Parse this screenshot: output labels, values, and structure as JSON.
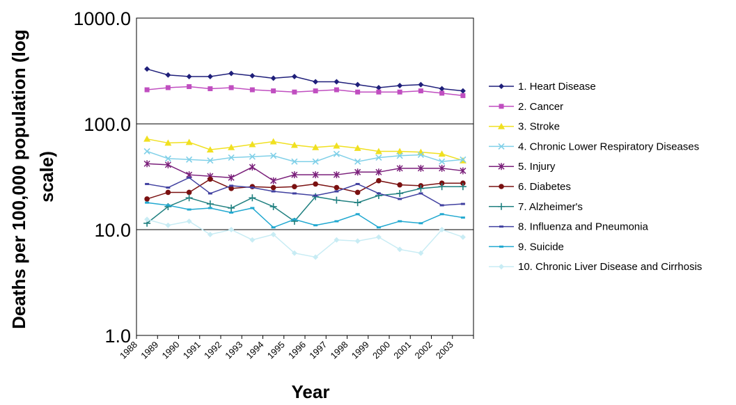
{
  "chart_data": {
    "type": "line",
    "xlabel": "Year",
    "ylabel_lines": [
      "Deaths per 100,000 population (log",
      "scale)"
    ],
    "yscale": "log",
    "ylim": [
      1,
      1000
    ],
    "yticks": [
      {
        "value": 1000,
        "label": "1000.0"
      },
      {
        "value": 100,
        "label": "100.0"
      },
      {
        "value": 10,
        "label": "10.0"
      },
      {
        "value": 1,
        "label": "1.0"
      }
    ],
    "x": [
      "1988",
      "1989",
      "1990",
      "1991",
      "1992",
      "1993",
      "1994",
      "1995",
      "1996",
      "1997",
      "1998",
      "1999",
      "2000",
      "2001",
      "2002",
      "2003"
    ],
    "legend_position": "right",
    "series": [
      {
        "name": "1. Heart Disease",
        "color": "#1f1f7a",
        "marker": "diamond",
        "values": [
          330,
          290,
          280,
          280,
          300,
          285,
          270,
          280,
          250,
          250,
          235,
          220,
          230,
          235,
          215,
          205
        ]
      },
      {
        "name": "2. Cancer",
        "color": "#c04ec0",
        "marker": "square",
        "values": [
          210,
          220,
          225,
          215,
          220,
          210,
          205,
          200,
          205,
          210,
          200,
          200,
          200,
          205,
          195,
          185
        ]
      },
      {
        "name": "3. Stroke",
        "color": "#f0e020",
        "marker": "triangle",
        "values": [
          72,
          66,
          67,
          57,
          60,
          64,
          68,
          63,
          60,
          62,
          59,
          55,
          55,
          54,
          52,
          45
        ]
      },
      {
        "name": "4. Chronic Lower Respiratory Diseases",
        "color": "#80d0e8",
        "marker": "x",
        "values": [
          55,
          47,
          46,
          45,
          48,
          49,
          50,
          44,
          44,
          52,
          44,
          48,
          50,
          51,
          44,
          46
        ]
      },
      {
        "name": "5. Injury",
        "color": "#7a1f7a",
        "marker": "star",
        "values": [
          42,
          41,
          33,
          32,
          31,
          39,
          29,
          33,
          33,
          33,
          35,
          35,
          38,
          38,
          38,
          36
        ]
      },
      {
        "name": "6. Diabetes",
        "color": "#7a1010",
        "marker": "circle",
        "values": [
          19.5,
          22.5,
          22.5,
          30,
          24.5,
          25.5,
          25,
          25.5,
          27,
          25,
          22.5,
          29,
          26.5,
          26,
          27.5,
          27.5
        ]
      },
      {
        "name": "7. Alzheimer's",
        "color": "#208080",
        "marker": "plus",
        "values": [
          11.5,
          16.5,
          20,
          17.5,
          16,
          20,
          16.5,
          12,
          20.5,
          19,
          18,
          21,
          22,
          24.5,
          25.5,
          25.5
        ]
      },
      {
        "name": "8. Influenza and Pneumonia",
        "color": "#4040a0",
        "marker": "dash",
        "values": [
          27,
          25,
          31,
          22,
          26,
          25,
          23,
          22,
          21,
          23,
          27,
          22,
          19.5,
          22,
          17,
          17.5
        ]
      },
      {
        "name": "9. Suicide",
        "color": "#20a8d0",
        "marker": "dash",
        "values": [
          18,
          17,
          15.5,
          16,
          14.5,
          16,
          10.5,
          12.5,
          11,
          12,
          14,
          10.5,
          12,
          11.5,
          14,
          13
        ]
      },
      {
        "name": "10. Chronic Liver Disease and Cirrhosis",
        "color": "#c8ecf4",
        "marker": "diamond",
        "values": [
          12.5,
          11,
          12,
          9,
          10,
          8,
          9,
          6,
          5.5,
          8,
          7.8,
          8.5,
          6.5,
          6,
          10,
          8.5
        ]
      }
    ]
  }
}
